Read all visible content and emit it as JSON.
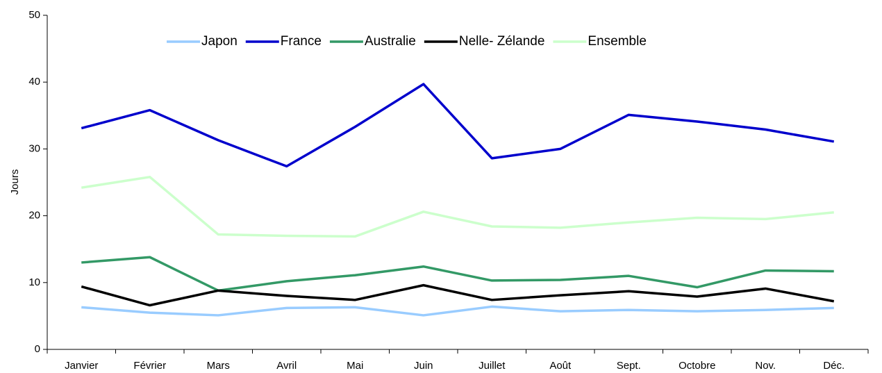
{
  "chart_data": {
    "type": "line",
    "y_label": "Jours",
    "categories": [
      "Janvier",
      "Février",
      "Mars",
      "Avril",
      "Mai",
      "Juin",
      "Juillet",
      "Août",
      "Sept.",
      "Octobre",
      "Nov.",
      "Déc."
    ],
    "series": [
      {
        "name": "Japon",
        "color": "#99ccff",
        "values": [
          6.3,
          5.5,
          5.1,
          6.2,
          6.3,
          5.1,
          6.4,
          5.7,
          5.9,
          5.7,
          5.9,
          6.2
        ]
      },
      {
        "name": "France",
        "color": "#0000cc",
        "values": [
          33.1,
          35.8,
          31.3,
          27.4,
          33.3,
          39.7,
          28.6,
          30.0,
          35.1,
          34.1,
          32.9,
          31.1
        ]
      },
      {
        "name": "Australie",
        "color": "#339966",
        "values": [
          13.0,
          13.8,
          8.8,
          10.2,
          11.1,
          12.4,
          10.3,
          10.4,
          11.0,
          9.3,
          11.8,
          11.7
        ]
      },
      {
        "name": "Nelle- Zélande",
        "color": "#000000",
        "values": [
          9.4,
          6.6,
          8.8,
          8.0,
          7.4,
          9.6,
          7.4,
          8.1,
          8.7,
          7.9,
          9.1,
          7.2
        ]
      },
      {
        "name": "Ensemble",
        "color": "#ccffcc",
        "values": [
          24.2,
          25.8,
          17.2,
          17.0,
          16.9,
          20.6,
          18.4,
          18.2,
          19.0,
          19.7,
          19.5,
          20.5
        ]
      }
    ],
    "ylim": [
      0,
      50
    ],
    "yticks": [
      0,
      10,
      20,
      30,
      40,
      50
    ],
    "legend": "top"
  }
}
